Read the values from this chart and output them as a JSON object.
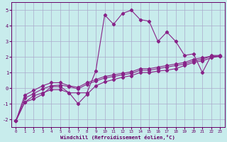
{
  "xlabel": "Windchill (Refroidissement éolien,°C)",
  "bg_color": "#c8ecec",
  "grid_color": "#aaaacc",
  "line_color": "#882288",
  "xlim": [
    -0.5,
    23.5
  ],
  "ylim": [
    -2.5,
    5.5
  ],
  "xticks": [
    0,
    1,
    2,
    3,
    4,
    5,
    6,
    7,
    8,
    9,
    10,
    11,
    12,
    13,
    14,
    15,
    16,
    17,
    18,
    19,
    20,
    21,
    22,
    23
  ],
  "yticks": [
    -2,
    -1,
    0,
    1,
    2,
    3,
    4,
    5
  ],
  "line1_x": [
    0,
    1,
    2,
    3,
    4,
    5,
    6,
    7,
    8,
    9,
    10,
    11,
    12,
    13,
    14,
    15,
    16,
    17,
    18,
    19,
    20,
    21,
    22,
    23
  ],
  "line1_y": [
    -2.1,
    -0.9,
    -0.7,
    -0.4,
    0.1,
    0.1,
    -0.3,
    -0.3,
    -0.3,
    1.1,
    4.7,
    4.1,
    4.8,
    5.0,
    4.4,
    4.3,
    3.0,
    3.6,
    3.0,
    2.1,
    2.2,
    1.0,
    2.1,
    2.1
  ],
  "line2_x": [
    0,
    1,
    2,
    3,
    4,
    5,
    6,
    7,
    8,
    9,
    10,
    11,
    12,
    13,
    14,
    15,
    16,
    17,
    18,
    19,
    20,
    21,
    22,
    23
  ],
  "line2_y": [
    -2.1,
    -0.9,
    -0.5,
    -0.3,
    -0.1,
    -0.1,
    -0.3,
    -1.0,
    -0.4,
    0.15,
    0.4,
    0.55,
    0.7,
    0.8,
    1.0,
    1.0,
    1.1,
    1.15,
    1.25,
    1.45,
    1.65,
    1.75,
    1.95,
    2.05
  ],
  "line3_x": [
    0,
    1,
    2,
    3,
    4,
    5,
    6,
    7,
    8,
    9,
    10,
    11,
    12,
    13,
    14,
    15,
    16,
    17,
    18,
    19,
    20,
    21,
    22,
    23
  ],
  "line3_y": [
    -2.1,
    -0.65,
    -0.35,
    -0.05,
    0.15,
    0.2,
    0.1,
    -0.05,
    0.25,
    0.45,
    0.65,
    0.75,
    0.85,
    0.95,
    1.15,
    1.15,
    1.25,
    1.35,
    1.45,
    1.55,
    1.75,
    1.85,
    2.05,
    2.05
  ],
  "line4_x": [
    0,
    1,
    2,
    3,
    4,
    5,
    6,
    7,
    8,
    9,
    10,
    11,
    12,
    13,
    14,
    15,
    16,
    17,
    18,
    19,
    20,
    21,
    22,
    23
  ],
  "line4_y": [
    -2.1,
    -0.45,
    -0.15,
    0.15,
    0.35,
    0.35,
    0.15,
    0.05,
    0.35,
    0.55,
    0.75,
    0.85,
    0.95,
    1.05,
    1.25,
    1.25,
    1.35,
    1.45,
    1.55,
    1.65,
    1.85,
    1.95,
    2.05,
    2.05
  ]
}
